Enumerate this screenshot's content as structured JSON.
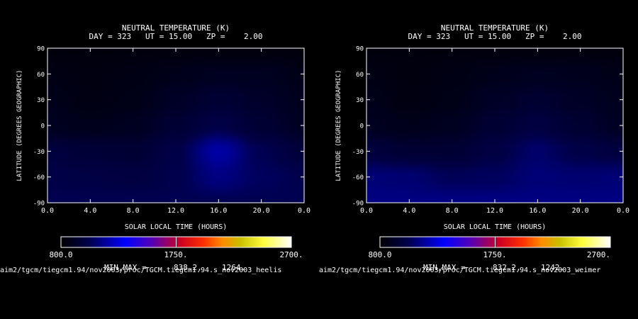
{
  "chart_data": [
    {
      "type": "heatmap",
      "title": "NEUTRAL TEMPERATURE (K)",
      "subtitle": "DAY = 323   UT = 15.00   ZP =    2.00",
      "xlabel": "SOLAR LOCAL TIME (HOURS)",
      "ylabel": "LATITUDE (DEGREES GEOGRAPHIC)",
      "x_ticks": [
        "0.0",
        "4.0",
        "8.0",
        "12.0",
        "16.0",
        "20.0",
        "0.0"
      ],
      "y_ticks": [
        "90",
        "60",
        "30",
        "0",
        "-30",
        "-60",
        "-90"
      ],
      "xlim": [
        0,
        24
      ],
      "ylim": [
        -90,
        90
      ],
      "colorbar": {
        "min_label": "800.0",
        "mid_label": "1750.",
        "max_label": "2700.",
        "range": [
          800,
          2700
        ]
      },
      "minmax_label": "MIN,MAX =",
      "min_value": "838.2,",
      "max_value": "1264.",
      "file_path": "aim2/tgcm/tiegcm1.94/nov2003/proc/TGCM.tiegcm1.94.s_nov2003_heelis",
      "grid_lat": [
        90,
        60,
        30,
        0,
        -30,
        -60,
        -90
      ],
      "grid_lt": [
        0,
        4,
        8,
        12,
        16,
        20,
        24
      ],
      "values": [
        [
          840,
          840,
          840,
          840,
          840,
          840,
          840
        ],
        [
          860,
          850,
          860,
          880,
          900,
          900,
          870
        ],
        [
          880,
          855,
          870,
          920,
          960,
          930,
          890
        ],
        [
          900,
          880,
          900,
          960,
          1020,
          960,
          910
        ],
        [
          990,
          970,
          960,
          1020,
          1180,
          1040,
          980
        ],
        [
          1020,
          1010,
          1000,
          1030,
          1120,
          1060,
          1030
        ],
        [
          1040,
          1040,
          1040,
          1040,
          1040,
          1040,
          1040
        ]
      ]
    },
    {
      "type": "heatmap",
      "title": "NEUTRAL TEMPERATURE (K)",
      "subtitle": "DAY = 323   UT = 15.00   ZP =    2.00",
      "xlabel": "SOLAR LOCAL TIME (HOURS)",
      "ylabel": "LATITUDE (DEGREES GEOGRAPHIC)",
      "x_ticks": [
        "0.0",
        "4.0",
        "8.0",
        "12.0",
        "16.0",
        "20.0",
        "0.0"
      ],
      "y_ticks": [
        "90",
        "60",
        "30",
        "0",
        "-30",
        "-60",
        "-90"
      ],
      "xlim": [
        0,
        24
      ],
      "ylim": [
        -90,
        90
      ],
      "colorbar": {
        "min_label": "800.0",
        "mid_label": "1750.",
        "max_label": "2700.",
        "range": [
          800,
          2700
        ]
      },
      "minmax_label": "MIN,MAX =",
      "min_value": "832.2,",
      "max_value": "1242.",
      "file_path": "aim2/tgcm/tiegcm1.94/nov2003/proc/TGCM.tiegcm1.94.s_nov2003_weimer",
      "grid_lat": [
        90,
        60,
        30,
        0,
        -30,
        -60,
        -90
      ],
      "grid_lt": [
        0,
        4,
        8,
        12,
        16,
        20,
        24
      ],
      "values": [
        [
          840,
          840,
          840,
          840,
          840,
          840,
          840
        ],
        [
          860,
          845,
          860,
          880,
          900,
          890,
          870
        ],
        [
          880,
          850,
          870,
          920,
          950,
          920,
          890
        ],
        [
          900,
          880,
          900,
          960,
          1000,
          950,
          910
        ],
        [
          990,
          960,
          960,
          1010,
          1080,
          1020,
          990
        ],
        [
          1100,
          1090,
          1050,
          1060,
          1100,
          1090,
          1100
        ],
        [
          1120,
          1120,
          1120,
          1120,
          1120,
          1120,
          1120
        ]
      ]
    }
  ]
}
